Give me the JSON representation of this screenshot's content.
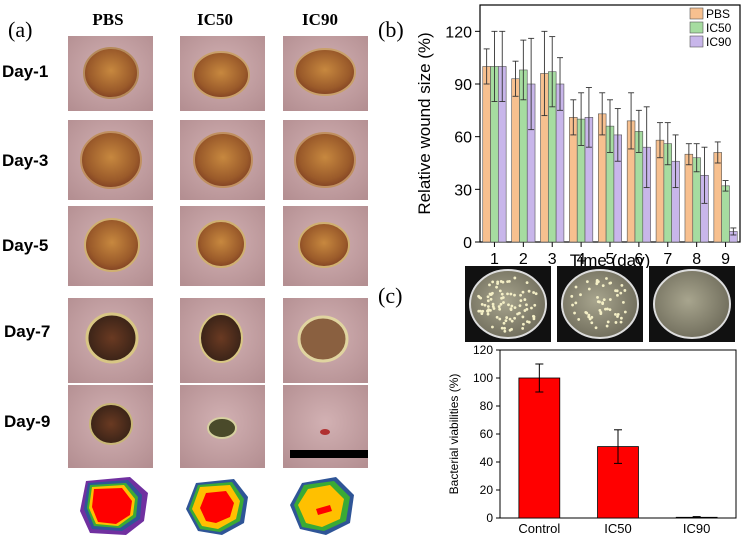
{
  "panel_a": {
    "label": "(a)",
    "columns": [
      "PBS",
      "IC50",
      "IC90"
    ],
    "rows": [
      "Day-1",
      "Day-3",
      "Day-5",
      "Day-7",
      "Day-9"
    ]
  },
  "panel_b": {
    "label": "(b)"
  },
  "panel_c": {
    "label": "(c)"
  },
  "colors": {
    "pbs": "#f7c08f",
    "ic50": "#a6dca0",
    "ic90": "#c8b6ea",
    "bar_red": "#ff0000",
    "skin": "#c9a6a8",
    "wound": "#b07a40"
  },
  "chart_data": [
    {
      "id": "wound-size",
      "type": "bar",
      "title": "",
      "xlabel": "Time (day)",
      "ylabel": "Relative wound size (%)",
      "categories": [
        "1",
        "2",
        "3",
        "4",
        "5",
        "6",
        "7",
        "8",
        "9"
      ],
      "ylim": [
        0,
        135
      ],
      "yticks": [
        0,
        30,
        60,
        90,
        120
      ],
      "legend_position": "top-right",
      "series": [
        {
          "name": "PBS",
          "values": [
            100,
            93,
            96,
            71,
            73,
            69,
            58,
            50,
            51
          ],
          "errors": [
            10,
            10,
            24,
            10,
            12,
            16,
            10,
            6,
            6
          ]
        },
        {
          "name": "IC50",
          "values": [
            100,
            98,
            97,
            70,
            66,
            63,
            56,
            48,
            32
          ],
          "errors": [
            20,
            17,
            20,
            15,
            15,
            12,
            12,
            8,
            3
          ]
        },
        {
          "name": "IC90",
          "values": [
            100,
            90,
            90,
            71,
            61,
            54,
            46,
            38,
            6
          ],
          "errors": [
            20,
            26,
            15,
            17,
            15,
            23,
            15,
            16,
            2
          ]
        }
      ]
    },
    {
      "id": "bacterial-viability",
      "type": "bar",
      "title": "",
      "xlabel": "",
      "ylabel": "Bacterial viabilities (%)",
      "categories": [
        "Control",
        "IC50",
        "IC90"
      ],
      "values": [
        100,
        51,
        0.5
      ],
      "errors": [
        10,
        12,
        0.5
      ],
      "ylim": [
        0,
        120
      ],
      "yticks": [
        0,
        20,
        40,
        60,
        80,
        100,
        120
      ]
    }
  ]
}
